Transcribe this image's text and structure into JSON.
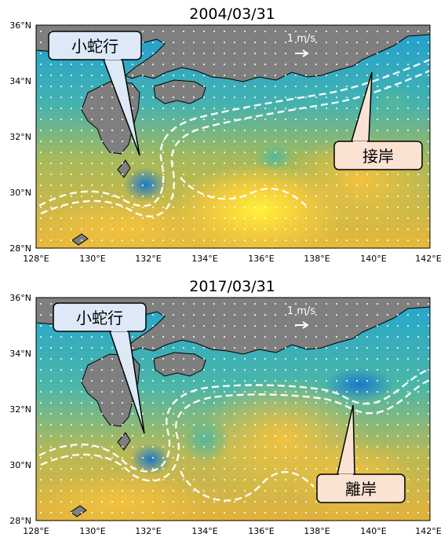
{
  "panels": [
    {
      "title": "2004/03/31",
      "scale_label": "1 m/s",
      "callouts": [
        {
          "text": "小蛇行",
          "fill": "#dde9f7"
        },
        {
          "text": "接岸",
          "fill": "#fbe3d3"
        }
      ]
    },
    {
      "title": "2017/03/31",
      "scale_label": "1 m/s",
      "callouts": [
        {
          "text": "小蛇行",
          "fill": "#dde9f7"
        },
        {
          "text": "離岸",
          "fill": "#fbe3d3"
        }
      ]
    }
  ],
  "axes": {
    "lat_labels": [
      "36°N",
      "34°N",
      "32°N",
      "30°N",
      "28°N"
    ],
    "lon_labels": [
      "128°E",
      "130°E",
      "132°E",
      "134°E",
      "136°E",
      "138°E",
      "140°E",
      "142°E"
    ]
  },
  "colors": {
    "land": "#7f7f7f",
    "sea_cold": "#1fa0d0",
    "sea_mid": "#4cb8a8",
    "sea_warm": "#d8b040",
    "sea_hot": "#ffe040",
    "arrows": "#ffffff"
  }
}
